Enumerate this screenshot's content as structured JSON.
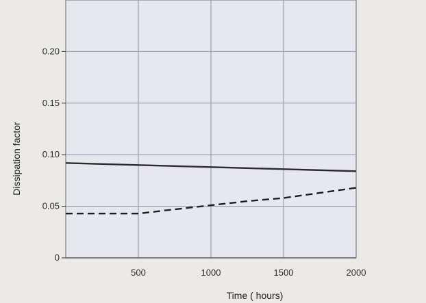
{
  "chart_data": {
    "type": "line",
    "xlabel": "Time ( hours)",
    "ylabel": "Dissipation factor",
    "xlim": [
      0,
      2000
    ],
    "ylim": [
      0,
      0.25
    ],
    "xticks": [
      500,
      1000,
      1500,
      2000
    ],
    "yticks": [
      0,
      0.05,
      0.1,
      0.15,
      0.2
    ],
    "xtick_labels": [
      "500",
      "1000",
      "1500",
      "2000"
    ],
    "ytick_labels": [
      "0",
      "0.05",
      "0.10",
      "0.15",
      "0.20"
    ],
    "grid": true,
    "legend": "none",
    "series": [
      {
        "style": "solid",
        "color": "#2b2b2b",
        "x": [
          0,
          500,
          1000,
          1500,
          2000
        ],
        "y": [
          0.092,
          0.09,
          0.088,
          0.086,
          0.084
        ]
      },
      {
        "style": "dashed",
        "color": "#1e1e1e",
        "x": [
          0,
          250,
          500,
          750,
          1000,
          1250,
          1500,
          1750,
          2000
        ],
        "y": [
          0.043,
          0.043,
          0.043,
          0.047,
          0.051,
          0.055,
          0.058,
          0.063,
          0.068
        ]
      }
    ]
  }
}
